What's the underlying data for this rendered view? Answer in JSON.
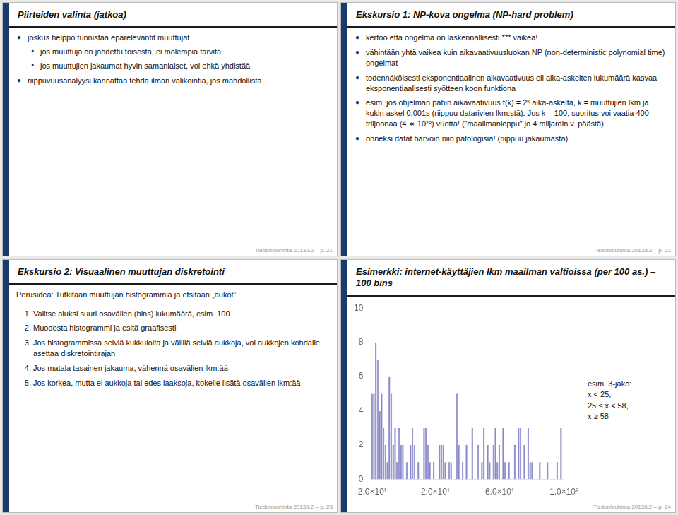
{
  "chart_data": [
    {
      "type": "bullets",
      "title": "Piirteiden valinta (jatkoa)",
      "footer": "Tiedonlouhinta 2013/L2 – p. 21",
      "bullets": [
        {
          "level": 1,
          "text": "joskus helppo tunnistaa epärelevantit muuttujat"
        },
        {
          "level": 2,
          "text": "jos muuttuja on johdettu toisesta, ei molempia tarvita"
        },
        {
          "level": 2,
          "text": "jos muuttujien jakaumat hyvin samanlaiset, voi ehkä yhdistää"
        },
        {
          "level": 1,
          "text": "riippuvuusanalyysi kannattaa tehdä ilman valikointia, jos mahdollista"
        }
      ]
    },
    {
      "type": "bullets",
      "title": "Ekskursio 1: NP-kova ongelma (NP-hard problem)",
      "footer": "Tiedonlouhinta 2013/L2 – p. 22",
      "bullets": [
        {
          "level": 1,
          "text": "kertoo että ongelma on laskennallisesti *** vaikea!"
        },
        {
          "level": 1,
          "text": "vähintään yhtä vaikea kuin aikavaativuusluokan NP (non-deterministic polynomial time) ongelmat"
        },
        {
          "level": 1,
          "text": "todennäköisesti eksponentiaalinen aikavaativuus eli aika-askelten lukumäärä kasvaa eksponentiaalisesti syötteen koon funktiona"
        },
        {
          "level": 1,
          "text": "esim. jos ohjelman pahin aikavaativuus f(k) = 2ᵏ aika-askelta, k = muuttujien lkm ja kukin askel 0.001s (riippuu datarivien lkm:stä). Jos k = 100, suoritus voi vaatia 400 triljoonaa (4 ∗ 10²⁰) vuotta! (”maailmanloppu” jo 4 miljardin v. päästä)"
        },
        {
          "level": 1,
          "text": "onneksi datat harvoin niin patologisia! (riippuu jakaumasta)"
        }
      ]
    },
    {
      "type": "numbered",
      "title": "Ekskursio 2: Visuaalinen muuttujan diskretointi",
      "footer": "Tiedonlouhinta 2013/L2 – p. 23",
      "subtitle": "Perusidea: Tutkitaan muuttujan histogrammia ja etsitään „aukot”",
      "items": [
        "Valitse aluksi suuri osavälien (bins) lukumäärä, esim. 100",
        "Muodosta histogrammi ja esitä graafisesti",
        "Jos histogrammissa selviä kukkuloita ja välillä selviä aukkoja, voi aukkojen kohdalle asettaa diskretointirajan",
        "Jos matala tasainen jakauma, vähennä osavälien lkm:ää",
        "Jos korkea, mutta ei aukkoja tai edes laaksoja, kokeile lisätä osavälien lkm:ää"
      ]
    },
    {
      "type": "histogram",
      "title": "Esimerkki: internet-käyttäjien lkm maailman valtioissa (per 100 as.) – 100 bins",
      "footer": "Tiedonlouhinta 2013/L2 – p. 24",
      "annotation": "esim. 3-jako:\nx < 25,\n25 ≤ x < 58,\nx ≥ 58",
      "bins": [
        -20,
        -18.8,
        -17.6,
        -16.4,
        -15.2,
        -14,
        -12.8,
        -11.6,
        -10.4,
        -9.2,
        -8,
        -6.8,
        -5.6,
        -4.4,
        -3.2,
        -2,
        -0.8,
        0.4,
        1.6,
        2.8,
        4,
        5.2,
        6.4,
        7.6,
        8.8,
        10,
        11.2,
        12.4,
        13.6,
        14.8,
        16,
        17.2,
        18.4,
        19.6,
        20.8,
        22,
        23.2,
        24.4,
        25.6,
        26.8,
        28,
        29.2,
        30.4,
        31.6,
        32.8,
        34,
        35.2,
        36.4,
        37.6,
        38.8,
        40,
        41.2,
        42.4,
        43.6,
        44.8,
        46,
        47.2,
        48.4,
        49.6,
        50.8,
        52,
        53.2,
        54.4,
        55.6,
        56.8,
        58,
        59.2,
        60.4,
        61.6,
        62.8,
        64,
        65.2,
        66.4,
        67.6,
        68.8,
        70,
        71.2,
        72.4,
        73.6,
        74.8,
        76,
        77.2,
        78.4,
        79.6,
        80.8,
        82,
        83.2,
        84.4,
        85.6,
        86.8,
        88,
        89.2,
        90.4,
        91.6,
        92.8,
        94,
        95.2,
        96.4,
        97.6,
        98.8,
        100
      ],
      "values": [
        5,
        5,
        8,
        7,
        4,
        5,
        3,
        2,
        1,
        6,
        5,
        2,
        3,
        1,
        3,
        2,
        2,
        0,
        1,
        0,
        2,
        3,
        2,
        0,
        1,
        0,
        0,
        3,
        3,
        2,
        1,
        0,
        1,
        0,
        0,
        2,
        2,
        2,
        1,
        0,
        1,
        1,
        0,
        0,
        5,
        2,
        0,
        1,
        0,
        2,
        0,
        0,
        3,
        0,
        0,
        2,
        0,
        1,
        3,
        0,
        2,
        1,
        0,
        2,
        3,
        1,
        2,
        0,
        3,
        1,
        0,
        1,
        0,
        0,
        2,
        0,
        3,
        3,
        0,
        2,
        0,
        3,
        1,
        1,
        0,
        0,
        0,
        1,
        0,
        0,
        0,
        1,
        0,
        0,
        0,
        0,
        1,
        0,
        3,
        0
      ],
      "color": "#8888cc",
      "xlim": [
        -20,
        100
      ],
      "ylim": [
        0,
        10
      ],
      "xticks": [
        {
          "value": -20,
          "label": "-2.0×10¹"
        },
        {
          "value": 20,
          "label": "2.0×10¹"
        },
        {
          "value": 60,
          "label": "6.0×10¹"
        },
        {
          "value": 100,
          "label": "1.0×10²"
        }
      ],
      "yticks": [
        0,
        2,
        4,
        6,
        8,
        10
      ],
      "grid": false
    }
  ]
}
